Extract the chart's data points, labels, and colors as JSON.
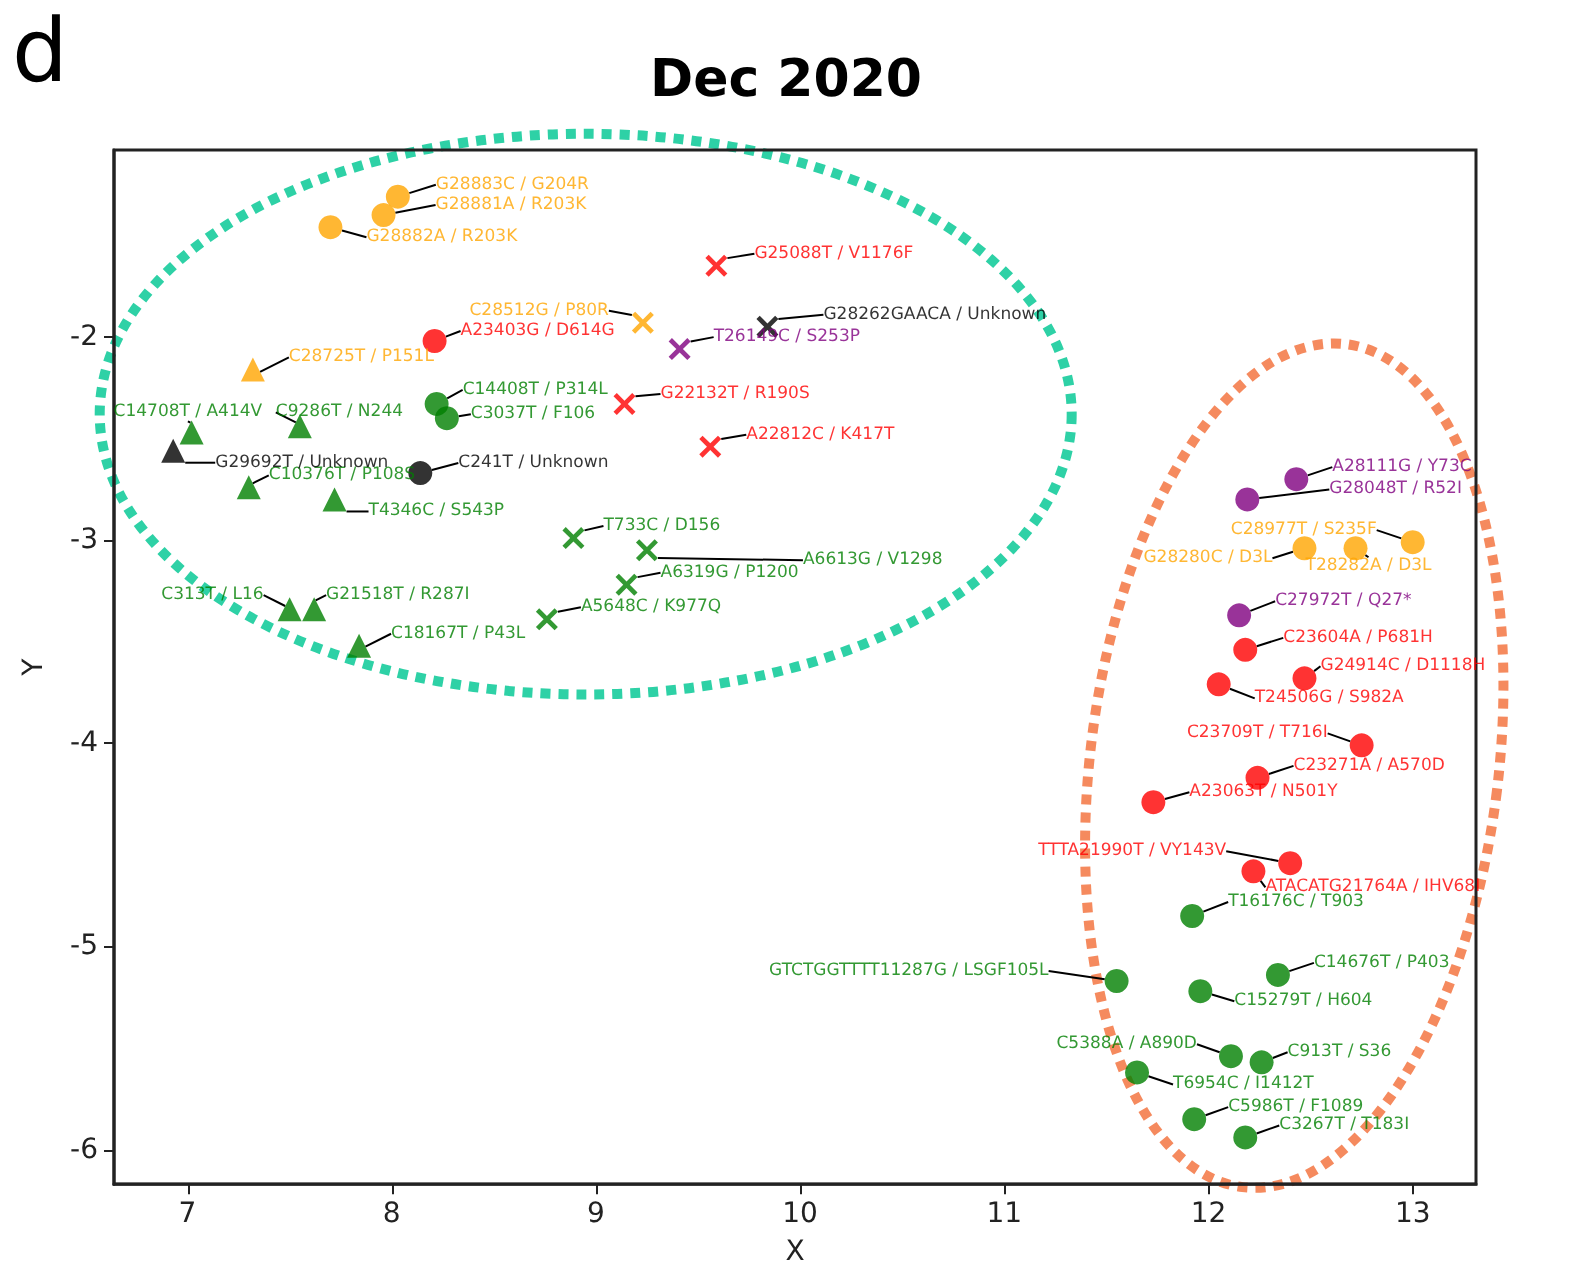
{
  "chart_data": {
    "type": "scatter",
    "title": "Dec 2020",
    "xlabel": "X",
    "ylabel": "Y",
    "annotations": [
      "d"
    ],
    "xlim": [
      6.64,
      13.31
    ],
    "ylim": [
      -6.17,
      -1.08
    ],
    "xticks": [
      7,
      8,
      9,
      10,
      11,
      12,
      13
    ],
    "yticks": [
      -6,
      -5,
      -4,
      -3,
      -2
    ],
    "grid": false,
    "series": [
      {
        "color": "#ffa500",
        "marker": "circle",
        "x": [
          8.03,
          7.96,
          7.7,
          12.47,
          12.72,
          13.0
        ],
        "values": [
          -1.31,
          -1.4,
          -1.46,
          -3.04,
          -3.04,
          -3.01
        ],
        "value_labels": [
          "G28883C / G204R",
          "G28881A / R203K",
          "G28882A / R203K",
          "G28280C / D3L",
          "T28282A / D3L",
          "C28977T / S235F"
        ]
      },
      {
        "color": "#ffa500",
        "marker": "cross",
        "x": [
          9.23
        ],
        "values": [
          -1.93
        ],
        "value_labels": [
          "C28512G / P80R"
        ]
      },
      {
        "color": "#ffa500",
        "marker": "triangle",
        "x": [
          7.32
        ],
        "values": [
          -2.16
        ],
        "value_labels": [
          "C28725T / P151L"
        ]
      },
      {
        "color": "#ff0000",
        "marker": "circle",
        "x": [
          8.21,
          12.18,
          12.47,
          12.05,
          12.75,
          12.24,
          11.73,
          12.4,
          12.22
        ],
        "values": [
          -2.02,
          -3.54,
          -3.68,
          -3.71,
          -4.01,
          -4.17,
          -4.29,
          -4.59,
          -4.63
        ],
        "value_labels": [
          "A23403G / D614G",
          "C23604A / P681H",
          "G24914C / D1118H",
          "T24506G / S982A",
          "C23709T / T716I",
          "C23271A / A570D",
          "A23063T / N501Y",
          "TTTA21990T / VY143V",
          "ATACATG21764A / IHV68I"
        ]
      },
      {
        "color": "#ff0000",
        "marker": "cross",
        "x": [
          9.14,
          9.59,
          9.56
        ],
        "values": [
          -2.33,
          -1.65,
          -2.54
        ],
        "value_labels": [
          "G22132T / R190S",
          "G25088T / V1176F",
          "A22812C / K417T"
        ]
      },
      {
        "color": "#008000",
        "marker": "circle",
        "x": [
          8.22,
          8.27,
          11.92,
          11.55,
          12.34,
          11.96,
          12.11,
          12.26,
          11.65,
          11.93,
          12.18
        ],
        "values": [
          -2.33,
          -2.4,
          -4.85,
          -5.17,
          -5.14,
          -5.22,
          -5.54,
          -5.57,
          -5.62,
          -5.85,
          -5.94
        ],
        "value_labels": [
          "C14408T / P314L",
          "C3037T / F106",
          "T16176C / T903",
          "GTCTGGTTTT11287G / LSGF105L",
          "C14676T / P403",
          "C15279T / H604",
          "C5388A / A890D",
          "C913T / S36",
          "T6954C / I1412T",
          "C5986T / F1089",
          "C3267T / T183I"
        ]
      },
      {
        "color": "#008000",
        "marker": "triangle",
        "x": [
          7.02,
          7.55,
          7.3,
          7.72,
          7.5,
          7.62,
          7.84
        ],
        "values": [
          -2.47,
          -2.44,
          -2.74,
          -2.8,
          -3.34,
          -3.34,
          -3.52
        ],
        "value_labels": [
          "C14708T / A414V",
          "C9286T / N244",
          "C10376T / P108S",
          "T4346C / S543P",
          "C313T / L16",
          "G21518T / R287I",
          "C18167T / P43L"
        ]
      },
      {
        "color": "#008000",
        "marker": "cross",
        "x": [
          8.89,
          9.25,
          9.15,
          8.76
        ],
        "values": [
          -2.99,
          -3.05,
          -3.22,
          -3.39
        ],
        "value_labels": [
          "T733C / D156",
          "A6613G / V1298",
          "A6319G / P1200",
          "A5648C / K977Q"
        ]
      },
      {
        "color": "#800080",
        "marker": "circle",
        "x": [
          12.43,
          12.19,
          12.15
        ],
        "values": [
          -2.7,
          -2.8,
          -3.37
        ],
        "value_labels": [
          "A28111G / Y73C",
          "G28048T / R52I",
          "C27972T / Q27*"
        ]
      },
      {
        "color": "#800080",
        "marker": "cross",
        "x": [
          9.41
        ],
        "values": [
          -2.06
        ],
        "value_labels": [
          "T26149C / S253P"
        ]
      },
      {
        "color": "#000000",
        "marker": "circle",
        "x": [
          8.14
        ],
        "values": [
          -2.67
        ],
        "value_labels": [
          "C241T / Unknown"
        ]
      },
      {
        "color": "#000000",
        "marker": "triangle",
        "x": [
          6.93
        ],
        "values": [
          -2.56
        ],
        "value_labels": [
          "G29692T / Unknown"
        ]
      },
      {
        "color": "#000000",
        "marker": "cross",
        "x": [
          9.84
        ],
        "values": [
          -1.95
        ],
        "value_labels": [
          "G28262GAACA / Unknown"
        ]
      }
    ]
  }
}
